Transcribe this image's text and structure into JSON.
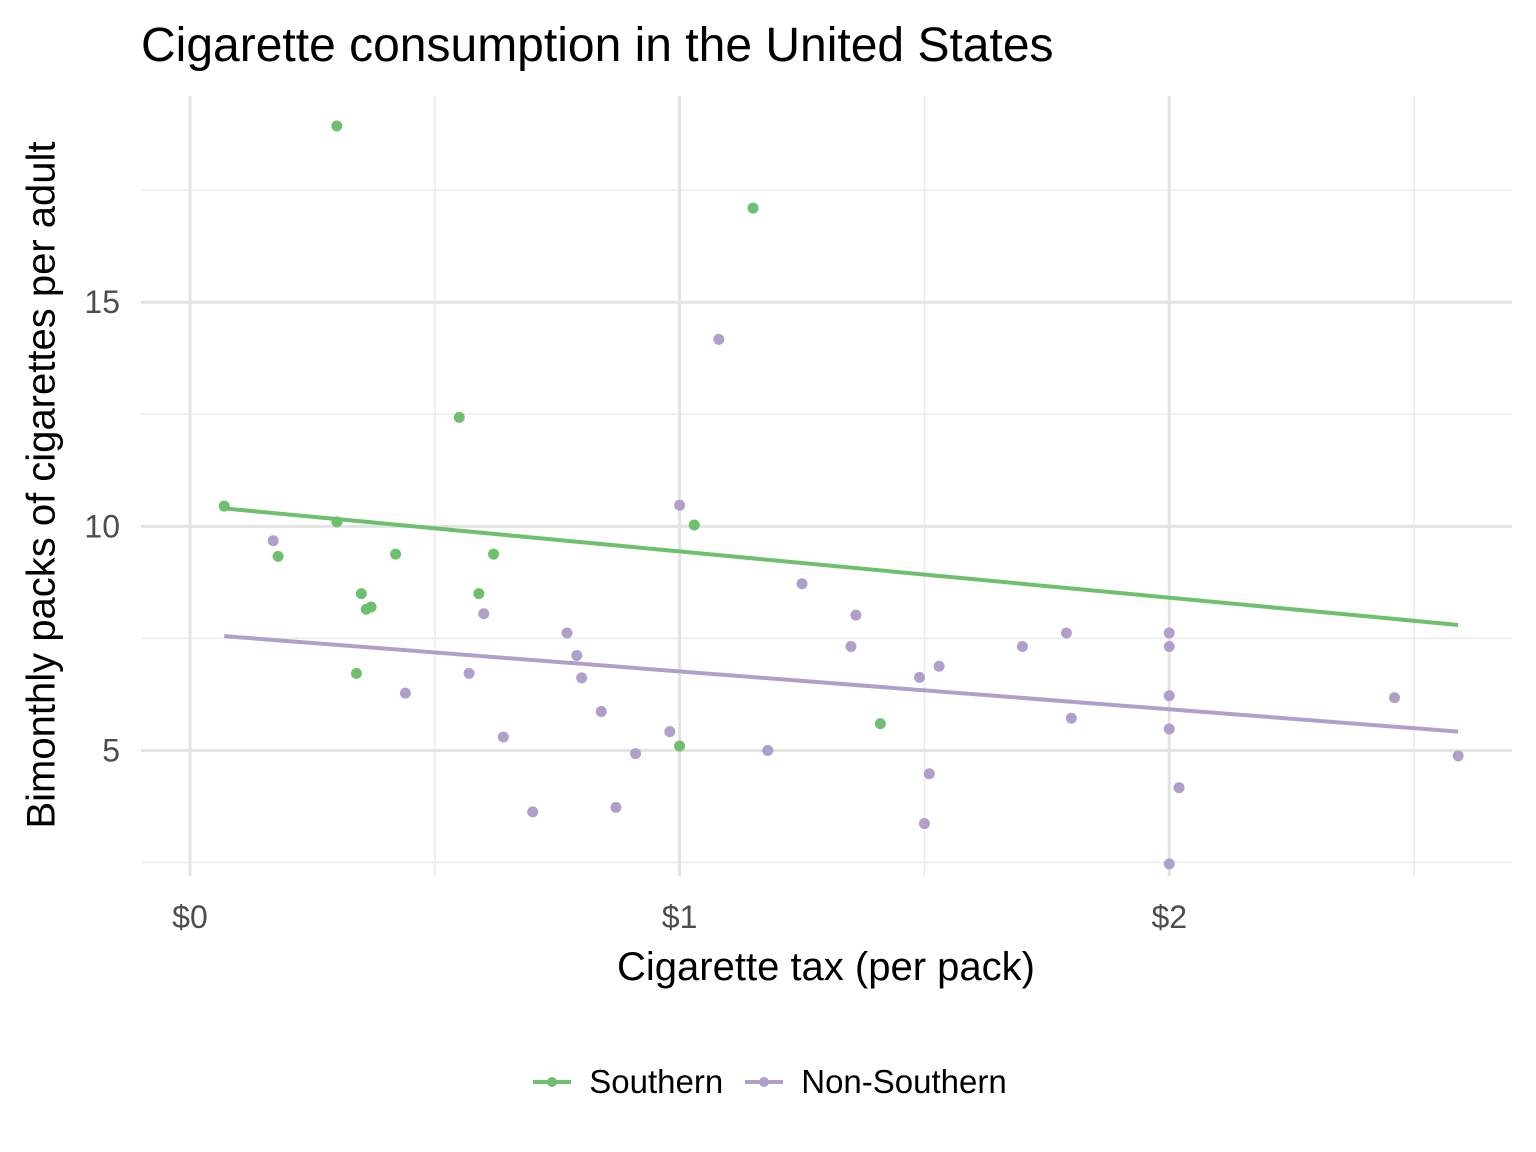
{
  "chart_data": {
    "type": "scatter",
    "title": "Cigarette consumption in the United States",
    "xlabel": "Cigarette tax (per pack)",
    "ylabel": "Bimonthly packs of cigarettes per adult",
    "xlim": [
      -0.1,
      2.7
    ],
    "ylim": [
      2.2,
      19.6
    ],
    "x_ticks": [
      {
        "value": 0,
        "label": "$0"
      },
      {
        "value": 1,
        "label": "$1"
      },
      {
        "value": 2,
        "label": "$2"
      }
    ],
    "y_ticks": [
      {
        "value": 5,
        "label": "5"
      },
      {
        "value": 10,
        "label": "10"
      },
      {
        "value": 15,
        "label": "15"
      }
    ],
    "x_minor_breaks": [
      0.5,
      1.5,
      2.5
    ],
    "y_minor_breaks": [
      2.5,
      7.5,
      12.5,
      17.5
    ],
    "grid": true,
    "legend_position": "bottom",
    "series": [
      {
        "name": "Southern",
        "color": "#6ec06e",
        "points": [
          [
            0.07,
            10.45
          ],
          [
            0.18,
            9.33
          ],
          [
            0.3,
            18.93
          ],
          [
            0.3,
            10.1
          ],
          [
            0.34,
            6.72
          ],
          [
            0.35,
            8.5
          ],
          [
            0.36,
            8.15
          ],
          [
            0.37,
            8.2
          ],
          [
            0.42,
            9.38
          ],
          [
            0.55,
            12.43
          ],
          [
            0.59,
            8.5
          ],
          [
            0.62,
            9.38
          ],
          [
            1.0,
            5.1
          ],
          [
            1.03,
            10.03
          ],
          [
            1.15,
            17.1
          ],
          [
            1.41,
            5.6
          ]
        ],
        "fit": {
          "x": [
            0.07,
            2.59
          ],
          "y": [
            10.4,
            7.8
          ]
        }
      },
      {
        "name": "Non-Southern",
        "color": "#b09fcb",
        "points": [
          [
            0.17,
            9.68
          ],
          [
            0.44,
            6.28
          ],
          [
            0.57,
            6.72
          ],
          [
            0.6,
            8.05
          ],
          [
            0.64,
            5.3
          ],
          [
            0.7,
            3.63
          ],
          [
            0.77,
            7.62
          ],
          [
            0.79,
            7.12
          ],
          [
            0.8,
            6.62
          ],
          [
            0.84,
            5.87
          ],
          [
            0.87,
            3.73
          ],
          [
            0.91,
            4.93
          ],
          [
            0.98,
            5.42
          ],
          [
            1.0,
            10.47
          ],
          [
            1.08,
            14.17
          ],
          [
            1.18,
            5.0
          ],
          [
            1.25,
            8.72
          ],
          [
            1.35,
            7.32
          ],
          [
            1.36,
            8.02
          ],
          [
            1.49,
            6.63
          ],
          [
            1.5,
            3.37
          ],
          [
            1.51,
            4.48
          ],
          [
            1.53,
            6.88
          ],
          [
            1.7,
            7.32
          ],
          [
            1.79,
            7.62
          ],
          [
            1.8,
            5.72
          ],
          [
            2.0,
            7.62
          ],
          [
            2.0,
            7.32
          ],
          [
            2.0,
            6.22
          ],
          [
            2.0,
            5.48
          ],
          [
            2.0,
            2.47
          ],
          [
            2.02,
            4.17
          ],
          [
            2.46,
            6.18
          ],
          [
            2.59,
            4.88
          ]
        ],
        "fit": {
          "x": [
            0.07,
            2.59
          ],
          "y": [
            7.55,
            5.42
          ]
        }
      }
    ]
  },
  "legend": {
    "items": [
      {
        "label": "Southern",
        "color": "#6ec06e"
      },
      {
        "label": "Non-Southern",
        "color": "#b09fcb"
      }
    ]
  }
}
